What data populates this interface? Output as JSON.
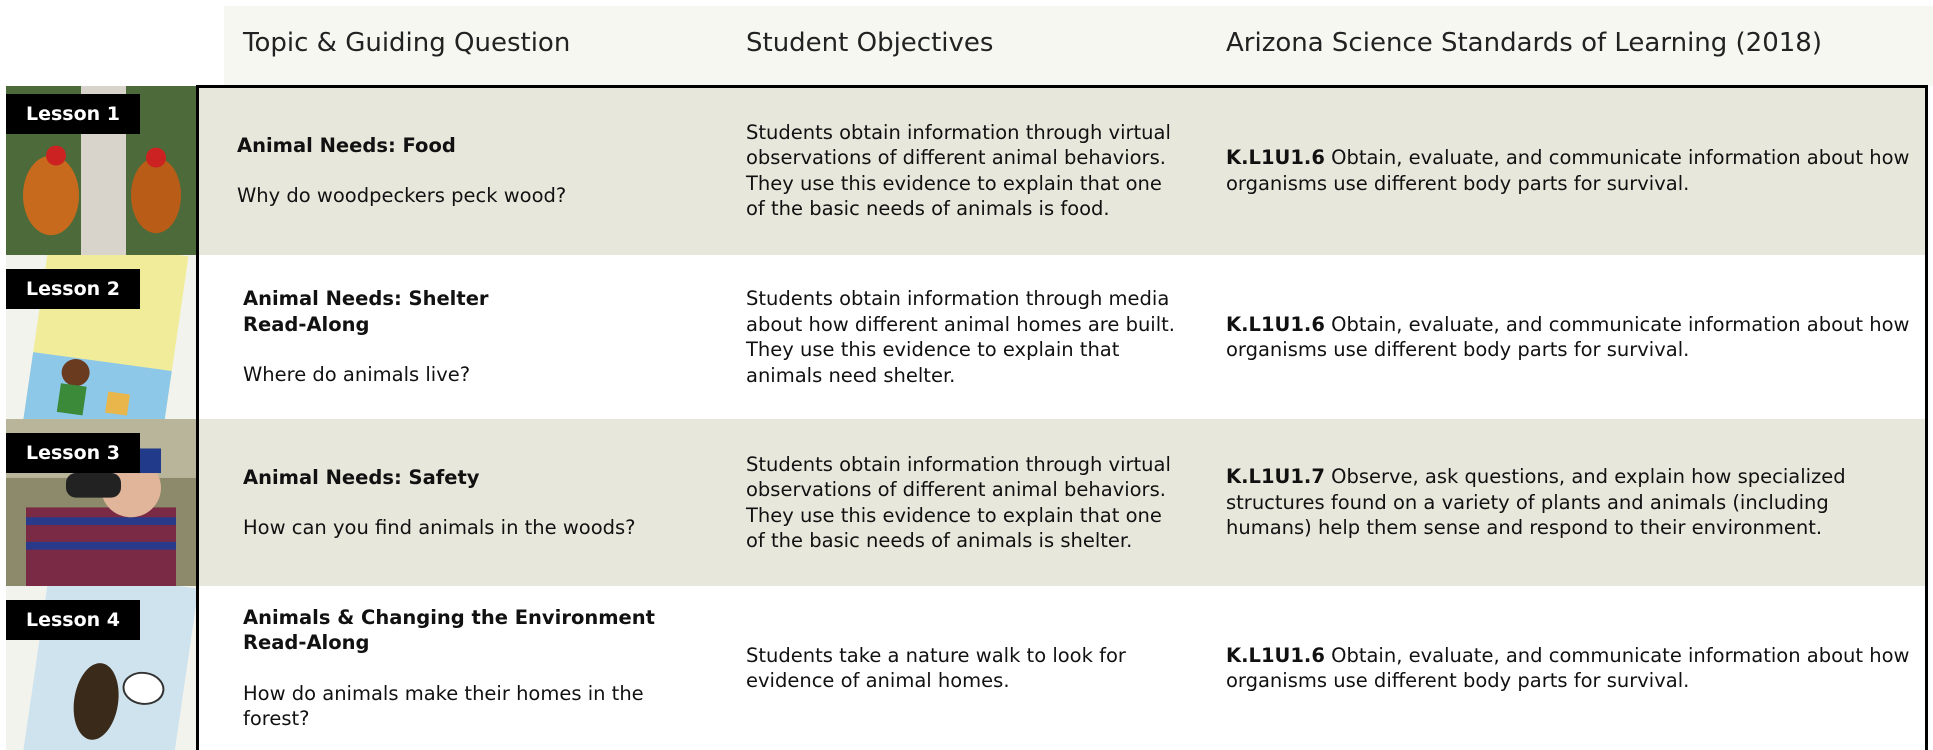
{
  "header": {
    "columns": [
      "Topic & Guiding Question",
      "Student Objectives",
      "Arizona Science Standards of Learning (2018)"
    ]
  },
  "lessons": [
    {
      "label": "Lesson 1",
      "topic": [
        "Animal Needs: Food"
      ],
      "question": "Why do woodpeckers peck wood?",
      "objective": "Students obtain information through virtual observations of different animal behaviors. They use this evidence to explain that one of the basic needs of animals is food.",
      "standard_code": "K.L1U1.6",
      "standard_text": "Obtain, evaluate, and communicate information about how organisms use different body parts for survival."
    },
    {
      "label": "Lesson 2",
      "topic": [
        "Animal Needs: Shelter",
        "Read-Along"
      ],
      "question": "Where do animals live?",
      "objective": "Students obtain information through media about how different animal homes are built. They use this evidence to explain that animals need shelter.",
      "standard_code": "K.L1U1.6",
      "standard_text": "Obtain, evaluate, and communicate information about how organisms use different body parts for survival."
    },
    {
      "label": "Lesson 3",
      "topic": [
        "Animal Needs: Safety"
      ],
      "question": "How can you find animals in the woods?",
      "objective": "Students obtain information through virtual observations of different animal behaviors. They use this evidence to explain that one of the basic needs of animals is shelter.",
      "standard_code": "K.L1U1.7",
      "standard_text": "Observe, ask questions, and explain how specialized structures found on a variety of plants and animals (including humans) help them sense and respond to their environment."
    },
    {
      "label": "Lesson 4",
      "topic": [
        "Animals & Changing the Environment",
        "Read-Along"
      ],
      "question": "How do animals make their homes in the forest?",
      "objective": "Students take a nature walk to look for evidence of animal homes.",
      "standard_code": "K.L1U1.6",
      "standard_text": "Obtain, evaluate, and communicate information about how organisms use different body parts for survival."
    }
  ]
}
